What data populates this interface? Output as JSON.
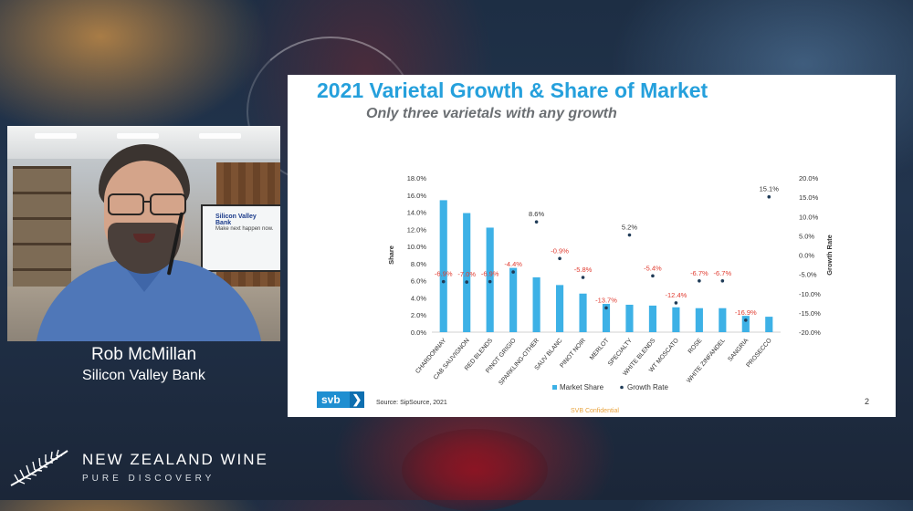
{
  "speaker": {
    "name": "Rob McMillan",
    "organization": "Silicon Valley Bank"
  },
  "webcam_screen": {
    "logo_text": "Silicon Valley Bank",
    "tagline": "Make next happen now."
  },
  "slide": {
    "title": "2021 Varietal Growth & Share of Market",
    "subtitle": "Only three varietals with any growth",
    "source": "Source: SipSource, 2021",
    "confidential": "SVB Confidential",
    "page_number": "2",
    "logo_text": "svb",
    "logo_chevron": "❯"
  },
  "chart_data": {
    "type": "bar",
    "categories": [
      "CHARDONNAY",
      "CAB SAUVIGNON",
      "RED BLENDS",
      "PINOT GRIGIO",
      "SPARKLING-OTHER",
      "SAUV BLANC",
      "PINOT NOIR",
      "MERLOT",
      "SPECIALTY",
      "WHITE BLENDS",
      "WT MOSCATO",
      "ROSE",
      "WHITE ZINFANDEL",
      "SANGRIA",
      "PROSECCO"
    ],
    "series": [
      {
        "name": "Market Share",
        "kind": "bar",
        "axis": "left",
        "color": "#3db1e6",
        "values": [
          15.4,
          13.9,
          12.2,
          7.5,
          6.4,
          5.5,
          4.5,
          3.3,
          3.2,
          3.1,
          2.9,
          2.8,
          2.8,
          1.9,
          1.8
        ]
      },
      {
        "name": "Growth Rate",
        "kind": "scatter",
        "axis": "right",
        "color": "#1f3b57",
        "values": [
          -6.9,
          -7.0,
          -6.9,
          -4.4,
          8.6,
          -0.9,
          -5.8,
          -13.7,
          5.2,
          -5.4,
          -12.4,
          -6.7,
          -6.7,
          -16.9,
          15.1
        ],
        "labels": [
          "-6.9%",
          "-7.0%",
          "-6.9%",
          "-4.4%",
          "8.6%",
          "-0.9%",
          "-5.8%",
          "-13.7%",
          "5.2%",
          "-5.4%",
          "-12.4%",
          "-6.7%",
          "-6.7%",
          "-16.9%",
          "15.1%"
        ]
      }
    ],
    "left_axis": {
      "label": "Share",
      "min": 0,
      "max": 18,
      "step": 2,
      "ticks": [
        "0.0%",
        "2.0%",
        "4.0%",
        "6.0%",
        "8.0%",
        "10.0%",
        "12.0%",
        "14.0%",
        "16.0%",
        "18.0%"
      ]
    },
    "right_axis": {
      "label": "Growth Rate",
      "min": -20,
      "max": 20,
      "step": 5,
      "ticks": [
        "-20.0%",
        "-15.0%",
        "-10.0%",
        "-5.0%",
        "0.0%",
        "5.0%",
        "10.0%",
        "15.0%",
        "20.0%"
      ]
    },
    "legend": {
      "position": "bottom"
    },
    "negative_label_color": "#e03c31",
    "positive_label_color": "#333333"
  },
  "branding": {
    "title": "NEW ZEALAND WINE",
    "subtitle": "PURE DISCOVERY"
  }
}
